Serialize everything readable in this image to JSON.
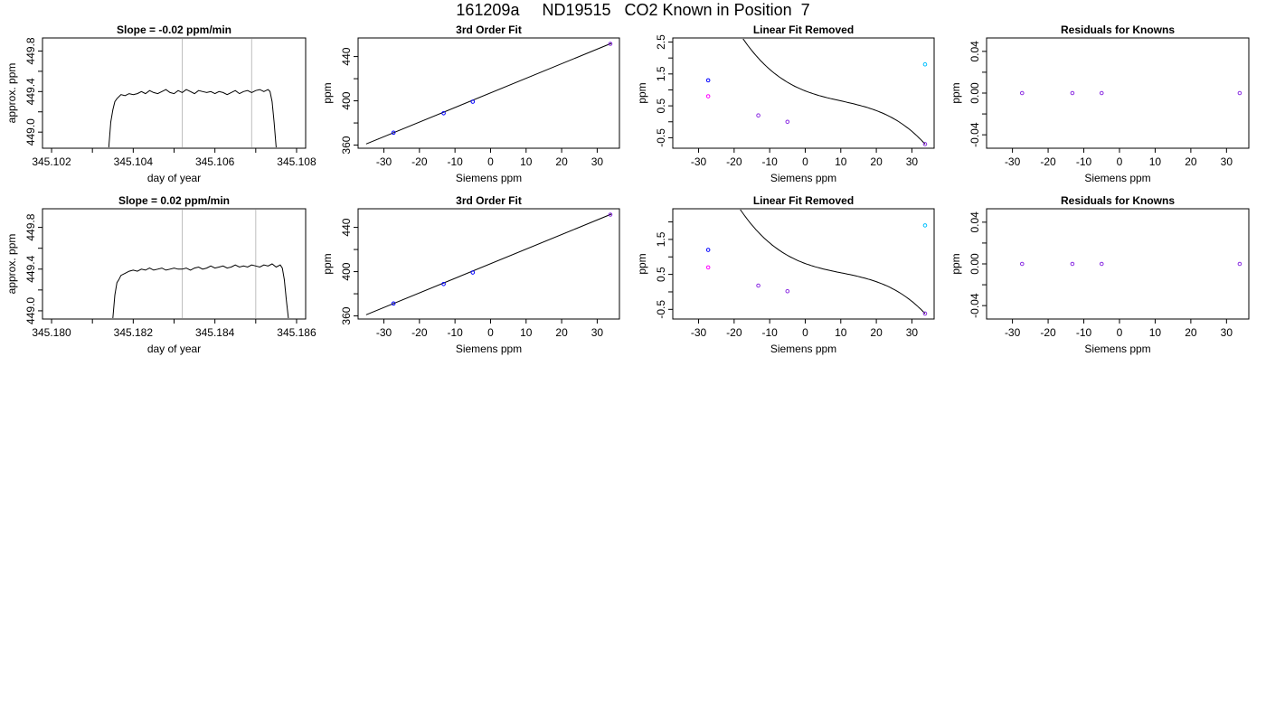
{
  "page": {
    "title": "161209a     ND19515   CO2 Known in Position  7"
  },
  "colors": {
    "axis": "#000000",
    "trace": "#000000",
    "marker_lines": "#bebebe",
    "fit_curve": "#000000",
    "point_blue": "#0000ff",
    "point_magenta": "#ff00ff",
    "point_purple": "#8a2be2",
    "point_cyan": "#00bfff",
    "point_red": "#ff0000"
  },
  "chart_data": [
    {
      "type": "line",
      "title": "Slope =  -0.02  ppm/min",
      "xlabel": "day of year",
      "ylabel": "approx. ppm",
      "xlim": [
        345.1018,
        345.1082
      ],
      "ylim": [
        448.85,
        449.92
      ],
      "xticks": [
        "345.102",
        "345.103",
        "345.104",
        "345.105",
        "345.106",
        "345.107",
        "345.108"
      ],
      "xtick_labels": [
        "345.102",
        "",
        "345.104",
        "",
        "345.106",
        "",
        "345.108"
      ],
      "yticks": [
        "449.0",
        "449.4",
        "449.8"
      ],
      "ytick_labels": [
        "449.0",
        "449.4",
        "449.8"
      ],
      "ytick_minor": [
        "449.2",
        "449.6"
      ],
      "vlines": [
        345.1052,
        345.1069
      ],
      "series": [
        {
          "x": [
            345.1034,
            345.10345,
            345.1035,
            345.10355,
            345.1036,
            345.1037,
            345.1038,
            345.1039,
            345.104,
            345.1041,
            345.1042,
            345.1043,
            345.1044,
            345.1045,
            345.1046,
            345.1047,
            345.1048,
            345.1049,
            345.105,
            345.1051,
            345.1052,
            345.1053,
            345.1054,
            345.1055,
            345.1056,
            345.1057,
            345.1058,
            345.1059,
            345.106,
            345.1061,
            345.1062,
            345.1063,
            345.1064,
            345.1065,
            345.1066,
            345.1067,
            345.1068,
            345.1069,
            345.107,
            345.1071,
            345.1072,
            345.1073,
            345.10735,
            345.1074,
            345.10745,
            345.1075
          ],
          "y": [
            448.85,
            449.1,
            449.22,
            449.3,
            449.33,
            449.37,
            449.36,
            449.38,
            449.37,
            449.38,
            449.4,
            449.38,
            449.41,
            449.39,
            449.38,
            449.4,
            449.42,
            449.39,
            449.38,
            449.41,
            449.39,
            449.42,
            449.4,
            449.38,
            449.41,
            449.4,
            449.39,
            449.4,
            449.38,
            449.4,
            449.39,
            449.37,
            449.39,
            449.41,
            449.38,
            449.4,
            449.41,
            449.39,
            449.41,
            449.42,
            449.4,
            449.42,
            449.4,
            449.3,
            449.1,
            448.85
          ]
        }
      ]
    },
    {
      "type": "scatter",
      "title": "3rd Order Fit",
      "xlabel": "Siemens ppm",
      "ylabel": "ppm",
      "xlim": [
        -37,
        36
      ],
      "ylim": [
        358,
        456
      ],
      "xticks": [
        -30,
        -20,
        -10,
        0,
        10,
        20,
        30
      ],
      "xtick_labels": [
        "-30",
        "-20",
        "-10",
        "0",
        "10",
        "20",
        "30"
      ],
      "yticks": [
        360,
        400,
        440
      ],
      "ytick_labels": [
        "360",
        "400",
        "440"
      ],
      "ytick_minor": [
        380,
        420
      ],
      "fit_line": {
        "x": [
          -35,
          34
        ],
        "y": [
          361,
          452
        ]
      },
      "points": [
        {
          "x": -27.3,
          "y": 371.2,
          "color": "point_blue"
        },
        {
          "x": -13.2,
          "y": 388.8,
          "color": "point_blue"
        },
        {
          "x": -5.0,
          "y": 399.2,
          "color": "point_blue"
        },
        {
          "x": 33.7,
          "y": 451.5,
          "color": "point_purple"
        }
      ]
    },
    {
      "type": "scatter",
      "title": "Linear Fit Removed",
      "xlabel": "Siemens ppm",
      "ylabel": "ppm",
      "xlim": [
        -37,
        36
      ],
      "ylim": [
        -0.8,
        2.6
      ],
      "xticks": [
        -30,
        -20,
        -10,
        0,
        10,
        20,
        30
      ],
      "xtick_labels": [
        "-30",
        "-20",
        "-10",
        "0",
        "10",
        "20",
        "30"
      ],
      "yticks": [
        -0.5,
        0.5,
        1.5,
        2.5
      ],
      "ytick_labels": [
        "-0.5",
        "0.5",
        "1.5",
        "2.5"
      ],
      "ytick_minor": [
        0.0,
        1.0,
        2.0
      ],
      "curve": {
        "x0": 33.7,
        "coef": [
          -0.7,
          -0.1227,
          -0.004167,
          -5.92e-05
        ],
        "xmin": -35,
        "xmax": 33.7
      },
      "points": [
        {
          "x": -27.3,
          "y": 1.3,
          "color": "point_blue"
        },
        {
          "x": -27.3,
          "y": 0.8,
          "color": "point_magenta"
        },
        {
          "x": -13.2,
          "y": 0.2,
          "color": "point_purple"
        },
        {
          "x": -5.0,
          "y": 0.0,
          "color": "point_purple"
        },
        {
          "x": 33.7,
          "y": 1.8,
          "color": "point_cyan"
        },
        {
          "x": 33.7,
          "y": -0.7,
          "color": "point_purple"
        }
      ]
    },
    {
      "type": "scatter",
      "title": "Residuals for Knowns",
      "xlabel": "Siemens ppm",
      "ylabel": "ppm",
      "xlim": [
        -37,
        36
      ],
      "ylim": [
        -0.052,
        0.052
      ],
      "xticks": [
        -30,
        -20,
        -10,
        0,
        10,
        20,
        30
      ],
      "xtick_labels": [
        "-30",
        "-20",
        "-10",
        "0",
        "10",
        "20",
        "30"
      ],
      "yticks": [
        -0.04,
        0.0,
        0.04
      ],
      "ytick_labels": [
        "-0.04",
        "0.00",
        "0.04"
      ],
      "ytick_minor": [
        -0.02,
        0.02
      ],
      "points": [
        {
          "x": -27.3,
          "y": 0.0,
          "color": "point_purple"
        },
        {
          "x": -13.2,
          "y": 0.0,
          "color": "point_purple"
        },
        {
          "x": -5.0,
          "y": 0.0,
          "color": "point_purple"
        },
        {
          "x": 33.7,
          "y": 0.0,
          "color": "point_purple"
        }
      ]
    },
    {
      "type": "line",
      "title": "Slope =  0.02  ppm/min",
      "xlabel": "day of year",
      "ylabel": "approx. ppm",
      "xlim": [
        345.1798,
        345.1862
      ],
      "ylim": [
        448.93,
        449.97
      ],
      "xticks": [
        "345.180",
        "345.181",
        "345.182",
        "345.183",
        "345.184",
        "345.185",
        "345.186"
      ],
      "xtick_labels": [
        "345.180",
        "",
        "345.182",
        "",
        "345.184",
        "",
        "345.186"
      ],
      "yticks": [
        "449.0",
        "449.4",
        "449.8"
      ],
      "ytick_labels": [
        "449.0",
        "449.4",
        "449.8"
      ],
      "ytick_minor": [
        "449.2",
        "449.6"
      ],
      "vlines": [
        345.1832,
        345.185
      ],
      "series": [
        {
          "x": [
            345.1815,
            345.18155,
            345.1816,
            345.18165,
            345.1817,
            345.1818,
            345.1819,
            345.182,
            345.1821,
            345.1822,
            345.1823,
            345.1824,
            345.1825,
            345.1826,
            345.1827,
            345.1828,
            345.1829,
            345.183,
            345.1831,
            345.1832,
            345.1833,
            345.1834,
            345.1835,
            345.1836,
            345.1837,
            345.1838,
            345.1839,
            345.184,
            345.1841,
            345.1842,
            345.1843,
            345.1844,
            345.1845,
            345.1846,
            345.1847,
            345.1848,
            345.1849,
            345.185,
            345.1851,
            345.1852,
            345.1853,
            345.1854,
            345.1855,
            345.1856,
            345.18565,
            345.1857,
            345.18575,
            345.1858
          ],
          "y": [
            448.93,
            449.15,
            449.27,
            449.3,
            449.34,
            449.36,
            449.38,
            449.39,
            449.38,
            449.4,
            449.39,
            449.41,
            449.39,
            449.4,
            449.41,
            449.39,
            449.4,
            449.41,
            449.4,
            449.4,
            449.41,
            449.39,
            449.41,
            449.42,
            449.4,
            449.41,
            449.43,
            449.41,
            449.42,
            449.43,
            449.41,
            449.42,
            449.44,
            449.42,
            449.43,
            449.42,
            449.44,
            449.43,
            449.42,
            449.44,
            449.43,
            449.45,
            449.42,
            449.44,
            449.41,
            449.3,
            449.1,
            448.93
          ]
        }
      ]
    },
    {
      "type": "scatter",
      "title": "3rd Order Fit",
      "xlabel": "Siemens ppm",
      "ylabel": "ppm",
      "xlim": [
        -37,
        36
      ],
      "ylim": [
        358,
        456
      ],
      "xticks": [
        -30,
        -20,
        -10,
        0,
        10,
        20,
        30
      ],
      "xtick_labels": [
        "-30",
        "-20",
        "-10",
        "0",
        "10",
        "20",
        "30"
      ],
      "yticks": [
        360,
        400,
        440
      ],
      "ytick_labels": [
        "360",
        "400",
        "440"
      ],
      "ytick_minor": [
        380,
        420
      ],
      "fit_line": {
        "x": [
          -35,
          34
        ],
        "y": [
          361,
          452
        ]
      },
      "points": [
        {
          "x": -27.3,
          "y": 371.2,
          "color": "point_blue"
        },
        {
          "x": -13.2,
          "y": 388.8,
          "color": "point_blue"
        },
        {
          "x": -5.0,
          "y": 399.2,
          "color": "point_blue"
        },
        {
          "x": 33.7,
          "y": 451.5,
          "color": "point_purple"
        }
      ]
    },
    {
      "type": "scatter",
      "title": "Linear Fit Removed",
      "xlabel": "Siemens ppm",
      "ylabel": "ppm",
      "xlim": [
        -37,
        36
      ],
      "ylim": [
        -0.75,
        2.35
      ],
      "xticks": [
        -30,
        -20,
        -10,
        0,
        10,
        20,
        30
      ],
      "xtick_labels": [
        "-30",
        "-20",
        "-10",
        "0",
        "10",
        "20",
        "30"
      ],
      "yticks": [
        -0.5,
        0.5,
        1.5
      ],
      "ytick_labels": [
        "-0.5",
        "0.5",
        "1.5"
      ],
      "ytick_minor": [
        0.0,
        1.0,
        2.0
      ],
      "curve": {
        "x0": 33.7,
        "coef": [
          -0.62,
          -0.1072,
          -0.00369,
          -5.25e-05
        ],
        "xmin": -35,
        "xmax": 33.7
      },
      "points": [
        {
          "x": -27.3,
          "y": 1.2,
          "color": "point_blue"
        },
        {
          "x": -27.3,
          "y": 0.7,
          "color": "point_magenta"
        },
        {
          "x": -13.2,
          "y": 0.18,
          "color": "point_purple"
        },
        {
          "x": -5.0,
          "y": 0.02,
          "color": "point_purple"
        },
        {
          "x": 33.7,
          "y": 1.9,
          "color": "point_cyan"
        },
        {
          "x": 33.7,
          "y": -0.62,
          "color": "point_purple"
        }
      ]
    },
    {
      "type": "scatter",
      "title": "Residuals for Knowns",
      "xlabel": "Siemens ppm",
      "ylabel": "ppm",
      "xlim": [
        -37,
        36
      ],
      "ylim": [
        -0.052,
        0.052
      ],
      "xticks": [
        -30,
        -20,
        -10,
        0,
        10,
        20,
        30
      ],
      "xtick_labels": [
        "-30",
        "-20",
        "-10",
        "0",
        "10",
        "20",
        "30"
      ],
      "yticks": [
        -0.04,
        0.0,
        0.04
      ],
      "ytick_labels": [
        "-0.04",
        "0.00",
        "0.04"
      ],
      "ytick_minor": [
        -0.02,
        0.02
      ],
      "points": [
        {
          "x": -27.3,
          "y": 0.0,
          "color": "point_purple"
        },
        {
          "x": -13.2,
          "y": 0.0,
          "color": "point_purple"
        },
        {
          "x": -5.0,
          "y": 0.0,
          "color": "point_purple"
        },
        {
          "x": 33.7,
          "y": 0.0,
          "color": "point_purple"
        }
      ]
    }
  ]
}
